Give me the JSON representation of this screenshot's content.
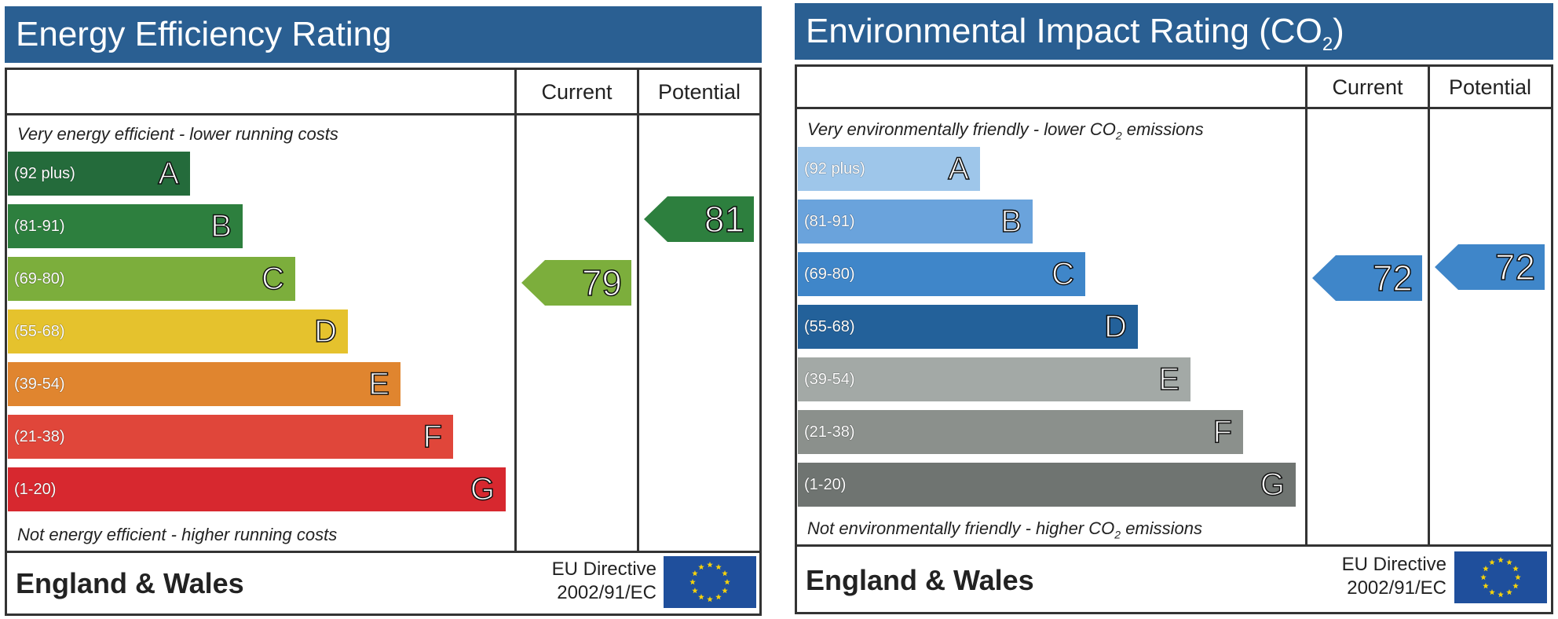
{
  "chart_data": [
    {
      "type": "bar",
      "title": "Energy Efficiency Rating",
      "headers": {
        "current": "Current",
        "potential": "Potential"
      },
      "top_note": "Very energy efficient - lower running costs",
      "bottom_note": "Not energy efficient - higher running costs",
      "bands": [
        {
          "letter": "A",
          "range": "(92 plus)",
          "color": "#246b3b"
        },
        {
          "letter": "B",
          "range": "(81-91)",
          "color": "#2d7f3e"
        },
        {
          "letter": "C",
          "range": "(69-80)",
          "color": "#7cae3c"
        },
        {
          "letter": "D",
          "range": "(55-68)",
          "color": "#e5c22d"
        },
        {
          "letter": "E",
          "range": "(39-54)",
          "color": "#e0852f"
        },
        {
          "letter": "F",
          "range": "(21-38)",
          "color": "#e0463a"
        },
        {
          "letter": "G",
          "range": "(1-20)",
          "color": "#d7282f"
        }
      ],
      "current": {
        "value": "79",
        "band": "C"
      },
      "potential": {
        "value": "81",
        "band": "B"
      },
      "footer": "England & Wales",
      "directive_line1": "EU Directive",
      "directive_line2": "2002/91/EC"
    },
    {
      "type": "bar",
      "title": "Environmental Impact Rating (CO",
      "title_sub": "2",
      "title_end": ")",
      "headers": {
        "current": "Current",
        "potential": "Potential"
      },
      "top_note": "Very environmentally friendly - lower CO",
      "top_note_sub": "2",
      "top_note_end": " emissions",
      "bottom_note": "Not environmentally friendly - higher CO",
      "bottom_note_sub": "2",
      "bottom_note_end": " emissions",
      "bands": [
        {
          "letter": "A",
          "range": "(92 plus)",
          "color": "#9ec6ea"
        },
        {
          "letter": "B",
          "range": "(81-91)",
          "color": "#6aa3dc"
        },
        {
          "letter": "C",
          "range": "(69-80)",
          "color": "#3f86c9"
        },
        {
          "letter": "D",
          "range": "(55-68)",
          "color": "#23619a"
        },
        {
          "letter": "E",
          "range": "(39-54)",
          "color": "#a3a9a6"
        },
        {
          "letter": "F",
          "range": "(21-38)",
          "color": "#8b908c"
        },
        {
          "letter": "G",
          "range": "(1-20)",
          "color": "#6f7471"
        }
      ],
      "current": {
        "value": "72",
        "band": "C"
      },
      "potential": {
        "value": "72",
        "band": "C"
      },
      "footer": "England & Wales",
      "directive_line1": "EU Directive",
      "directive_line2": "2002/91/EC"
    }
  ]
}
